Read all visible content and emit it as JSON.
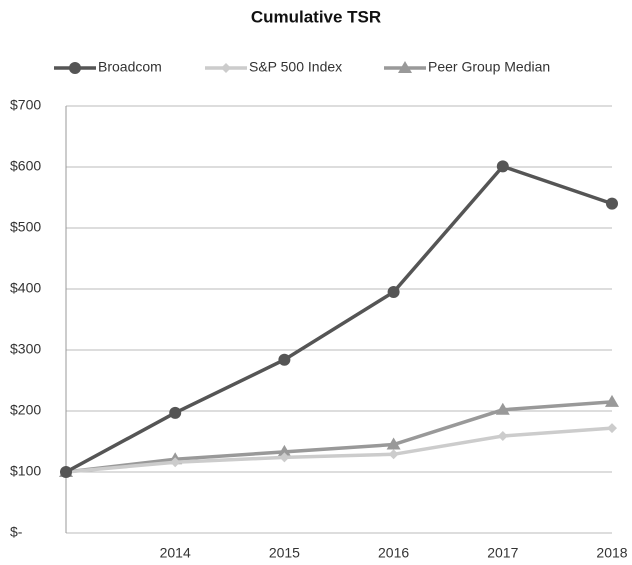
{
  "chart_data": {
    "type": "line",
    "title": "Cumulative TSR",
    "categories": [
      null,
      "2014",
      "2015",
      "2016",
      "2017",
      "2018"
    ],
    "series": [
      {
        "name": "Broadcom",
        "color": "#555555",
        "marker": "circle",
        "values": [
          100,
          197,
          284,
          395,
          601,
          540
        ]
      },
      {
        "name": "S&P 500 Index",
        "color": "#cccccc",
        "marker": "diamond",
        "values": [
          100,
          116,
          124,
          129,
          159,
          172
        ]
      },
      {
        "name": "Peer Group Median",
        "color": "#999999",
        "marker": "triangle",
        "values": [
          100,
          121,
          133,
          145,
          202,
          215
        ]
      }
    ],
    "ylim": [
      0,
      700
    ],
    "yticks": [
      {
        "value": 0,
        "label": "$-"
      },
      {
        "value": 100,
        "label": "$100"
      },
      {
        "value": 200,
        "label": "$200"
      },
      {
        "value": 300,
        "label": "$300"
      },
      {
        "value": 400,
        "label": "$400"
      },
      {
        "value": 500,
        "label": "$500"
      },
      {
        "value": 600,
        "label": "$600"
      },
      {
        "value": 700,
        "label": "$700"
      }
    ],
    "grid": true,
    "legend": "top"
  }
}
